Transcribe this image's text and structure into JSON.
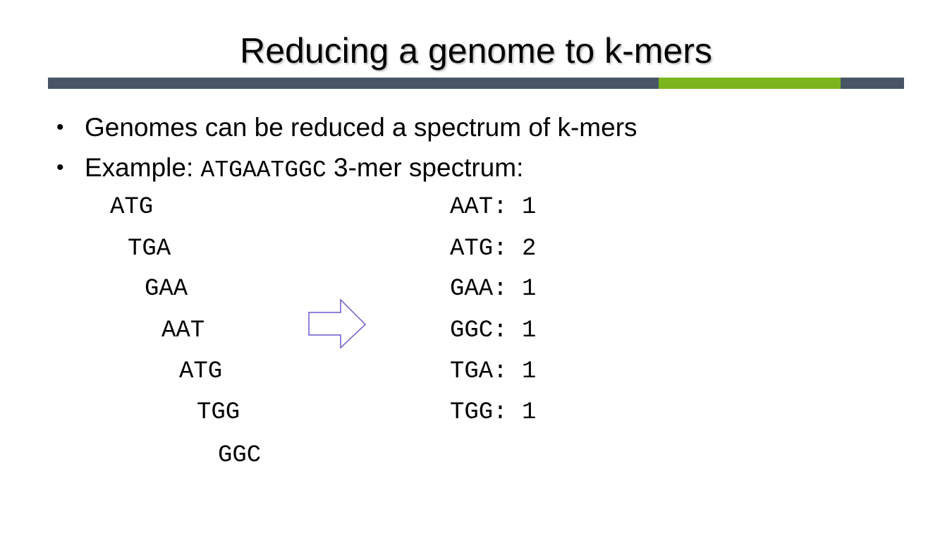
{
  "slide": {
    "title": "Reducing a genome to k-mers",
    "bullets": {
      "b1": "Genomes can be reduced a spectrum of k-mers",
      "b2_prefix": "Example: ",
      "b2_sequence": "ATGAATGGC",
      "b2_suffix": " 3-mer spectrum:"
    },
    "bullet_glyph": "•"
  },
  "kmers": [
    "ATG",
    "TGA",
    "GAA",
    "AAT",
    "ATG",
    "TGG",
    "GGC"
  ],
  "spectrum": [
    "AAT: 1",
    "ATG: 2",
    "GAA: 1",
    "GGC: 1",
    "TGA: 1",
    "TGG: 1"
  ],
  "colors": {
    "bar": "#475565",
    "bar_accent": "#7ab51d",
    "arrow": "#6a5acd"
  },
  "icons": {
    "arrow": "right-arrow-icon"
  }
}
